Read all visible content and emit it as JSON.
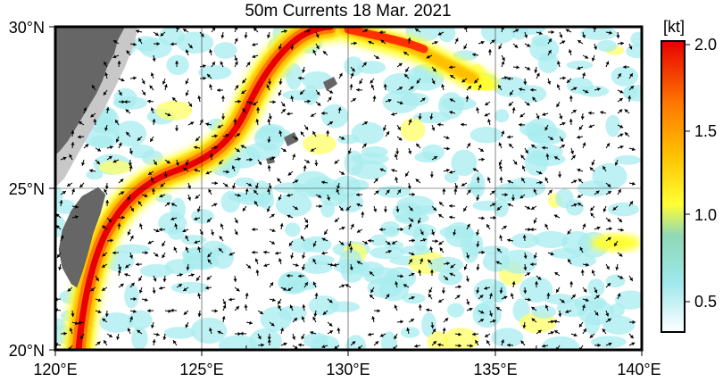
{
  "title": "50m Currents  18 Mar. 2021",
  "map": {
    "lon_range": [
      120,
      140
    ],
    "lat_range": [
      20,
      30
    ],
    "lon_ticks": [
      "120°E",
      "125°E",
      "130°E",
      "135°E",
      "140°E"
    ],
    "lat_ticks": [
      "20°N",
      "25°N",
      "30°N"
    ],
    "grid_lines": true,
    "colors": {
      "land": "#666666",
      "shelf": "#c8c8c8",
      "ocean_background": "#ffffff",
      "vector_color": "#000000"
    }
  },
  "colorbar": {
    "unit_label": "[kt]",
    "tick_labels": [
      "0.5",
      "1.0",
      "1.5",
      "2.0"
    ],
    "range": [
      0.3,
      2.1
    ],
    "stops": [
      {
        "value": 0.3,
        "color": "#ffffff"
      },
      {
        "value": 0.6,
        "color": "#9ee8ec"
      },
      {
        "value": 0.9,
        "color": "#8fd8b8"
      },
      {
        "value": 1.1,
        "color": "#ffff33"
      },
      {
        "value": 1.4,
        "color": "#ffc000"
      },
      {
        "value": 1.7,
        "color": "#ff7a00"
      },
      {
        "value": 2.1,
        "color": "#e80000"
      }
    ]
  }
}
